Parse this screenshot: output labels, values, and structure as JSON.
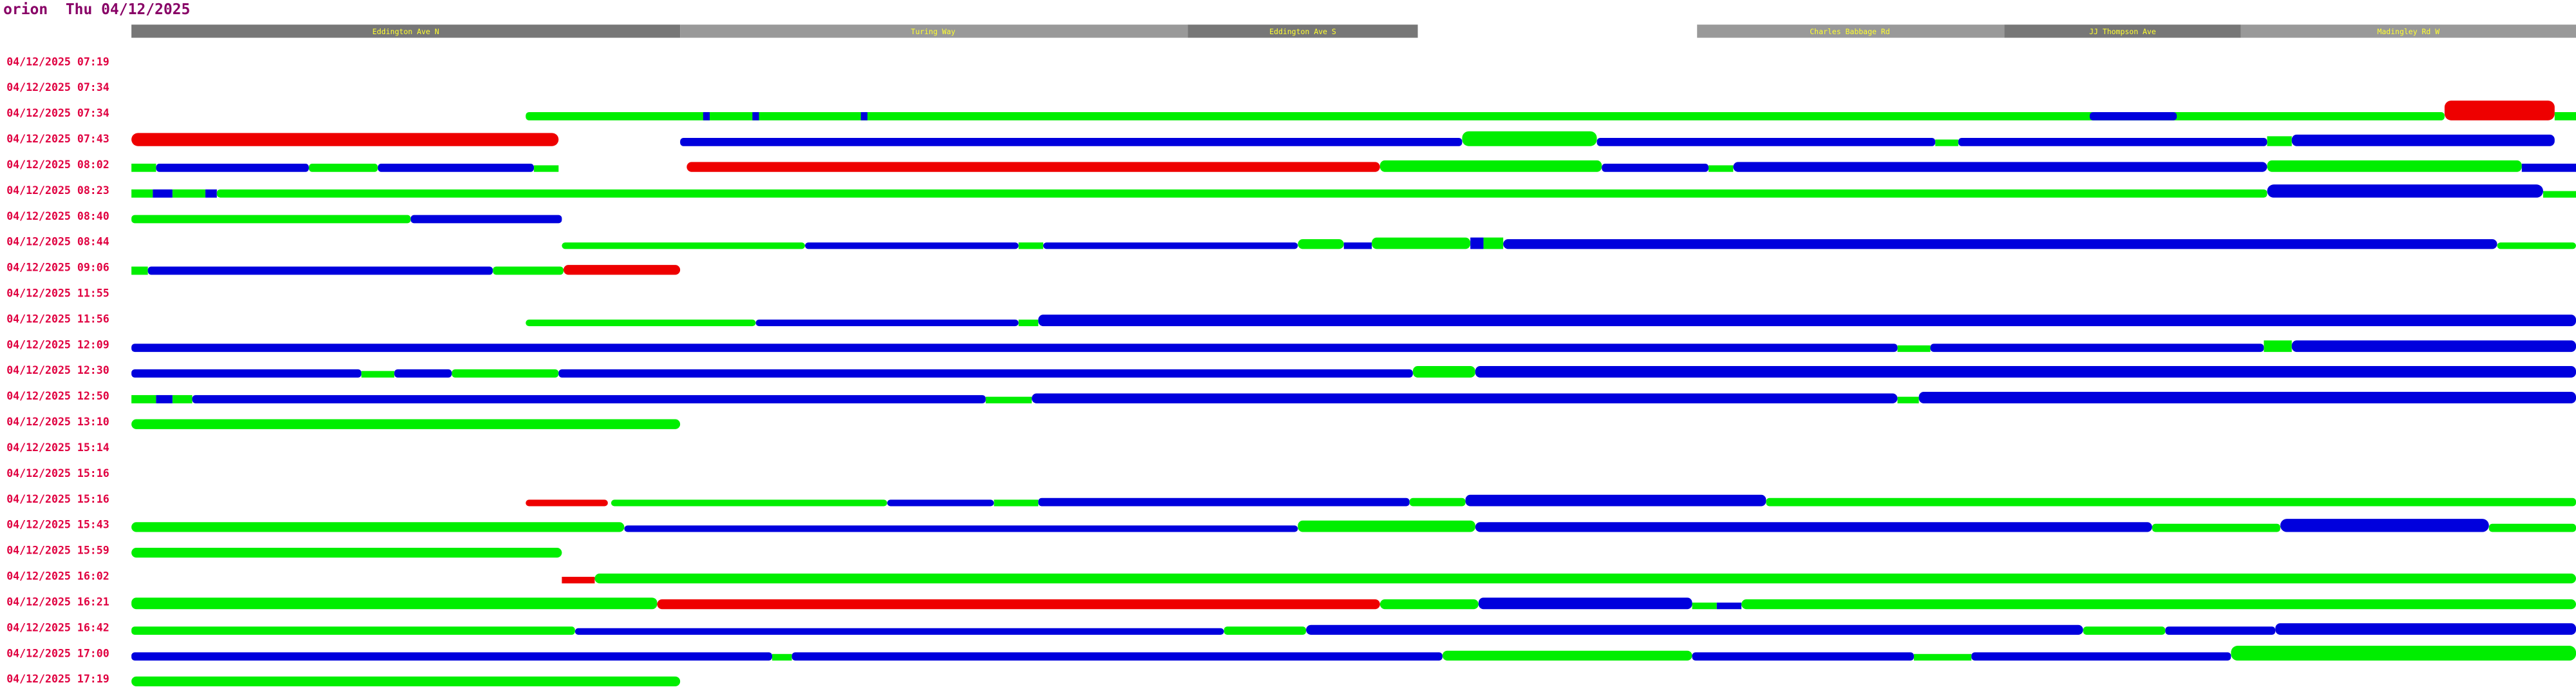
{
  "header": {
    "title": "orion  Thu 04/12/2025"
  },
  "roads": [
    "Eddington Ave N",
    "Turing Way",
    "Eddington Ave S",
    "Charles Babbage Rd",
    "JJ Thompson Ave",
    "Madingley Rd W"
  ],
  "rows": [
    "04/12/2025 07:19",
    "04/12/2025 07:34",
    "04/12/2025 07:34",
    "04/12/2025 07:43",
    "04/12/2025 08:02",
    "04/12/2025 08:23",
    "04/12/2025 08:40",
    "04/12/2025 08:44",
    "04/12/2025 09:06",
    "04/12/2025 11:55",
    "04/12/2025 11:56",
    "04/12/2025 12:09",
    "04/12/2025 12:30",
    "04/12/2025 12:50",
    "04/12/2025 13:10",
    "04/12/2025 15:14",
    "04/12/2025 15:16",
    "04/12/2025 15:16",
    "04/12/2025 15:43",
    "04/12/2025 15:59",
    "04/12/2025 16:02",
    "04/12/2025 16:21",
    "04/12/2025 16:42",
    "04/12/2025 17:00",
    "04/12/2025 17:19"
  ]
}
